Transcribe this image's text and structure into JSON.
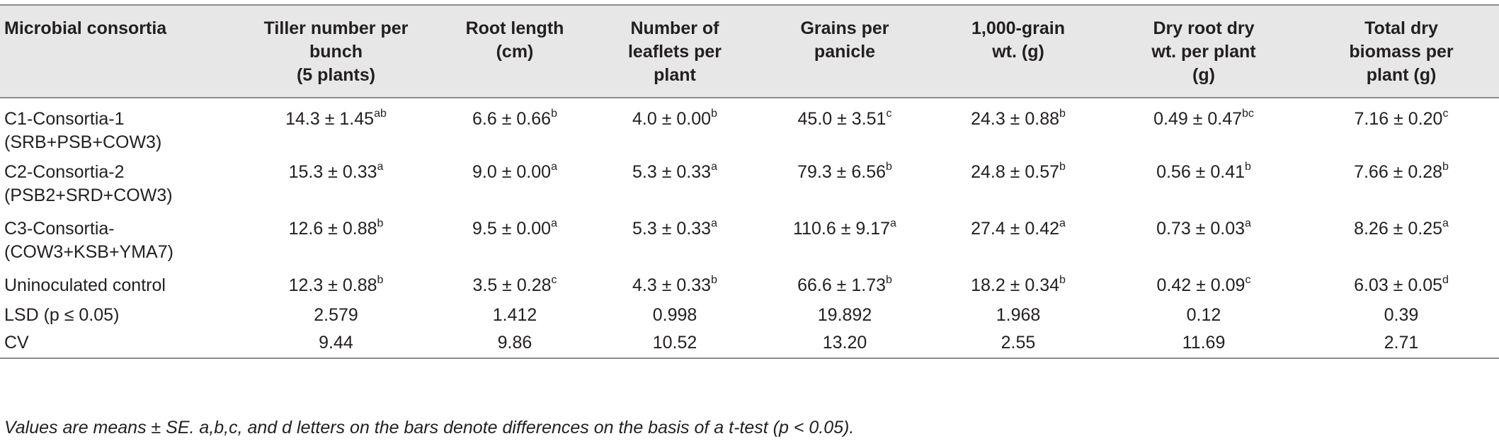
{
  "table": {
    "headers": [
      [
        "Microbial consortia"
      ],
      [
        "Tiller number per",
        "bunch",
        "(5 plants)"
      ],
      [
        "Root length",
        "(cm)"
      ],
      [
        "Number of",
        "leaflets per",
        "plant"
      ],
      [
        "Grains per",
        "panicle"
      ],
      [
        "1,000-grain",
        "wt. (g)"
      ],
      [
        "Dry root dry",
        "wt. per plant",
        "(g)"
      ],
      [
        "Total dry",
        "biomass per",
        "plant (g)"
      ]
    ],
    "rows": [
      {
        "name_lines": [
          "C1-Consortia-1",
          "(SRB+PSB+COW3)"
        ],
        "cells": [
          {
            "value": "14.3 ± 1.45",
            "sup": "ab"
          },
          {
            "value": "6.6 ± 0.66",
            "sup": "b"
          },
          {
            "value": "4.0 ± 0.00",
            "sup": "b"
          },
          {
            "value": "45.0 ± 3.51",
            "sup": "c"
          },
          {
            "value": "24.3 ± 0.88",
            "sup": "b"
          },
          {
            "value": "0.49 ± 0.47",
            "sup": "bc"
          },
          {
            "value": "7.16 ± 0.20",
            "sup": "c"
          }
        ]
      },
      {
        "name_lines": [
          "C2-Consortia-2",
          "(PSB2+SRD+COW3)"
        ],
        "cells": [
          {
            "value": "15.3 ± 0.33",
            "sup": "a"
          },
          {
            "value": "9.0 ± 0.00",
            "sup": "a"
          },
          {
            "value": "5.3 ± 0.33",
            "sup": "a"
          },
          {
            "value": "79.3 ± 6.56",
            "sup": "b"
          },
          {
            "value": "24.8 ± 0.57",
            "sup": "b"
          },
          {
            "value": "0.56 ± 0.41",
            "sup": "b"
          },
          {
            "value": "7.66 ± 0.28",
            "sup": "b"
          }
        ]
      },
      {
        "name_lines": [
          "C3-Consortia-",
          "(COW3+KSB+YMA7)"
        ],
        "cells": [
          {
            "value": "12.6 ± 0.88",
            "sup": "b"
          },
          {
            "value": "9.5 ± 0.00",
            "sup": "a"
          },
          {
            "value": "5.3 ± 0.33",
            "sup": "a"
          },
          {
            "value": "110.6 ± 9.17",
            "sup": "a"
          },
          {
            "value": "27.4 ± 0.42",
            "sup": "a"
          },
          {
            "value": "0.73 ± 0.03",
            "sup": "a"
          },
          {
            "value": "8.26 ± 0.25",
            "sup": "a"
          }
        ]
      },
      {
        "name_lines": [
          "Uninoculated control"
        ],
        "cells": [
          {
            "value": "12.3 ± 0.88",
            "sup": "b"
          },
          {
            "value": "3.5 ± 0.28",
            "sup": "c"
          },
          {
            "value": "4.3 ± 0.33",
            "sup": "b"
          },
          {
            "value": "66.6 ± 1.73",
            "sup": "b"
          },
          {
            "value": "18.2 ± 0.34",
            "sup": "b"
          },
          {
            "value": "0.42 ± 0.09",
            "sup": "c"
          },
          {
            "value": "6.03 ± 0.05",
            "sup": "d"
          }
        ]
      },
      {
        "name_lines": [
          "LSD (p ≤ 0.05)"
        ],
        "cells": [
          {
            "value": "2.579",
            "sup": ""
          },
          {
            "value": "1.412",
            "sup": ""
          },
          {
            "value": "0.998",
            "sup": ""
          },
          {
            "value": "19.892",
            "sup": ""
          },
          {
            "value": "1.968",
            "sup": ""
          },
          {
            "value": "0.12",
            "sup": ""
          },
          {
            "value": "0.39",
            "sup": ""
          }
        ]
      },
      {
        "name_lines": [
          "CV"
        ],
        "cells": [
          {
            "value": "9.44",
            "sup": ""
          },
          {
            "value": "9.86",
            "sup": ""
          },
          {
            "value": "10.52",
            "sup": ""
          },
          {
            "value": "13.20",
            "sup": ""
          },
          {
            "value": "2.55",
            "sup": ""
          },
          {
            "value": "11.69",
            "sup": ""
          },
          {
            "value": "2.71",
            "sup": ""
          }
        ]
      }
    ]
  },
  "footnote": "Values are means ± SE. a,b,c, and d letters on the bars denote differences on the basis of a t-test (p < 0.05).",
  "colors": {
    "header_background": "#e7e7e8",
    "rule": "#8d8c8e",
    "text": "#231f20"
  }
}
